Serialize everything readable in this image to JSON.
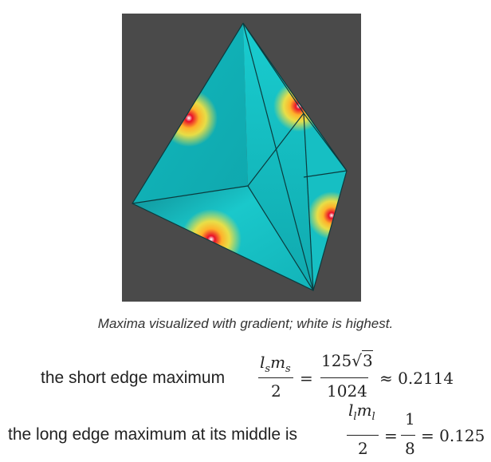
{
  "figure": {
    "description_colors": {
      "background": "#4a4a4a",
      "face_base": "#16c4c8",
      "face_dark": "#0f7f86",
      "edge_line": "#0b3b3e",
      "hot_center": "#e8102a",
      "hot_mid": "#ffe23a"
    }
  },
  "caption": "Maxima visualized with gradient; white is highest.",
  "eq1": {
    "label": "the short edge maximum",
    "frac_num_l": "l",
    "frac_num_l_sub": "s",
    "frac_num_m": "m",
    "frac_num_m_sub": "s",
    "frac_den": "2",
    "eq_sign": "=",
    "rhs_num": "125",
    "rhs_sqrt_arg": "3",
    "rhs_den": "1024",
    "approx": "≈ 0.2114"
  },
  "eq2": {
    "label": "the long edge maximum at its middle is",
    "frac_num_l": "l",
    "frac_num_l_sub": "l",
    "frac_num_m": "m",
    "frac_num_m_sub": "l",
    "frac_den": "2",
    "eq_sign": "=",
    "rhs_num": "1",
    "rhs_den": "8",
    "result": "= 0.125"
  }
}
